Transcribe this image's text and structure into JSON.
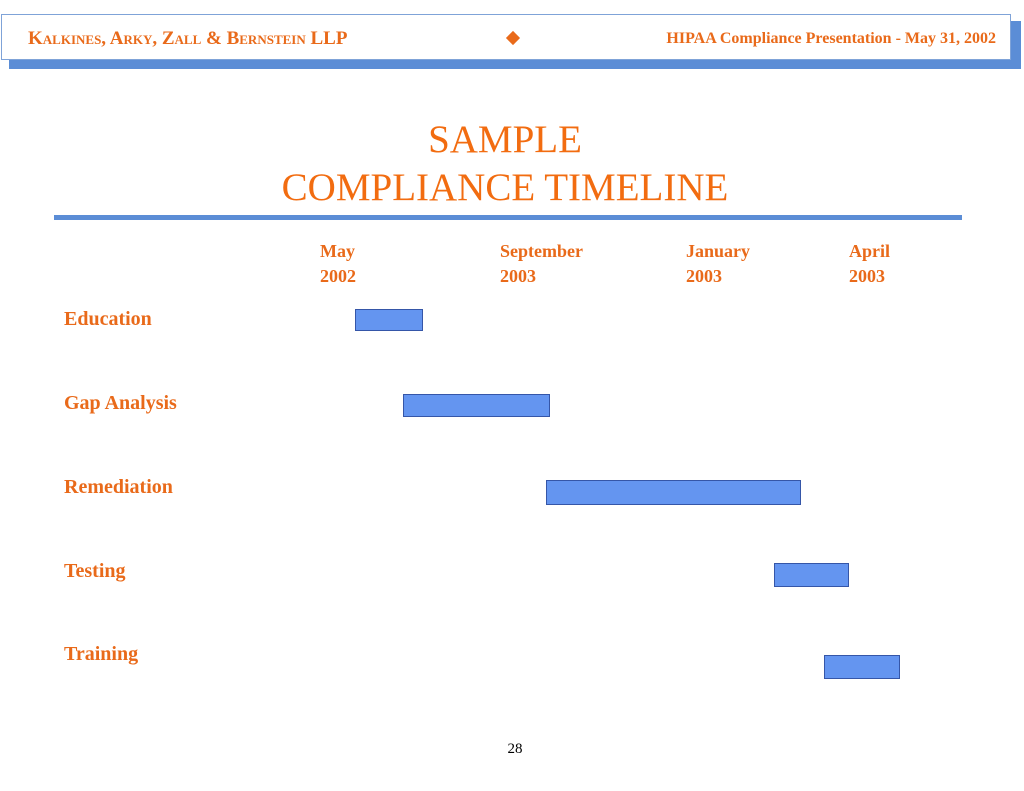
{
  "header": {
    "firm_name": "Kalkines, Arky, Zall & Bernstein LLP",
    "subtitle": "HIPAA Compliance Presentation - May 31, 2002"
  },
  "title": {
    "line1": "SAMPLE",
    "line2": "COMPLIANCE TIMELINE"
  },
  "timeline": {
    "months": [
      {
        "month": "May",
        "year": "2002"
      },
      {
        "month": "September",
        "year": "2003"
      },
      {
        "month": "January",
        "year": "2003"
      },
      {
        "month": "April",
        "year": "2003"
      }
    ],
    "tasks": [
      {
        "name": "Education"
      },
      {
        "name": "Gap Analysis"
      },
      {
        "name": "Remediation"
      },
      {
        "name": "Testing"
      },
      {
        "name": "Training"
      }
    ]
  },
  "colors": {
    "accent": "#e96a1a",
    "bar_fill": "#6495f0",
    "rule": "#5b8dd6"
  },
  "page_number": "28"
}
